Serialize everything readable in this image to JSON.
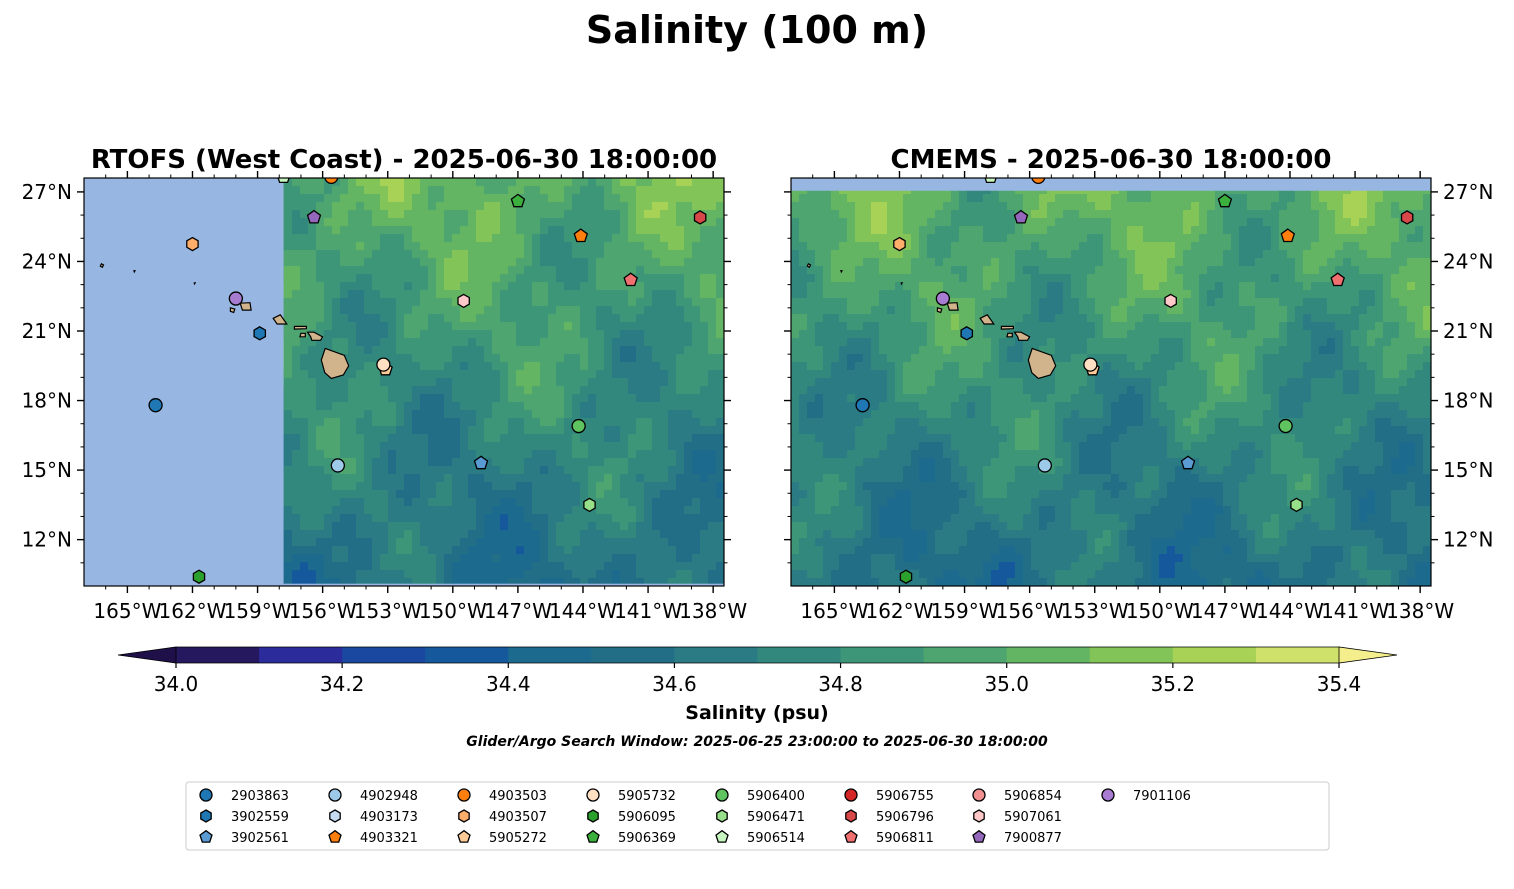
{
  "title": "Salinity (100 m)",
  "panels": [
    {
      "title": "RTOFS (West Coast) - 2025-06-30 18:00:00"
    },
    {
      "title": "CMEMS - 2025-06-30 18:00:00"
    }
  ],
  "map": {
    "lon_range": [
      -167,
      -137.5
    ],
    "lat_range": [
      10,
      27.6
    ],
    "x_ticks": [
      {
        "value": -165,
        "label": "165°W"
      },
      {
        "value": -162,
        "label": "162°W"
      },
      {
        "value": -159,
        "label": "159°W"
      },
      {
        "value": -156,
        "label": "156°W"
      },
      {
        "value": -153,
        "label": "153°W"
      },
      {
        "value": -150,
        "label": "150°W"
      },
      {
        "value": -147,
        "label": "147°W"
      },
      {
        "value": -144,
        "label": "144°W"
      },
      {
        "value": -141,
        "label": "141°W"
      },
      {
        "value": -138,
        "label": "138°W"
      }
    ],
    "y_ticks": [
      {
        "value": 27,
        "label": "27°N"
      },
      {
        "value": 24,
        "label": "24°N"
      },
      {
        "value": 21,
        "label": "21°N"
      },
      {
        "value": 18,
        "label": "18°N"
      },
      {
        "value": 15,
        "label": "15°N"
      },
      {
        "value": 12,
        "label": "12°N"
      }
    ],
    "land_color": "#d2b48c",
    "nodata_color": "#97b6e1"
  },
  "colorbar": {
    "label": "Salinity (psu)",
    "min": 34.0,
    "max": 35.4,
    "step": 0.1,
    "ticks": [
      {
        "value": 34.0,
        "label": "34.0"
      },
      {
        "value": 34.2,
        "label": "34.2"
      },
      {
        "value": 34.4,
        "label": "34.4"
      },
      {
        "value": 34.6,
        "label": "34.6"
      },
      {
        "value": 34.8,
        "label": "34.8"
      },
      {
        "value": 35.0,
        "label": "35.0"
      },
      {
        "value": 35.2,
        "label": "35.2"
      },
      {
        "value": 35.4,
        "label": "35.4"
      }
    ],
    "colors": [
      "#26185e",
      "#2c2b9c",
      "#1a48a0",
      "#16589c",
      "#1c6b8f",
      "#226e87",
      "#2a7b84",
      "#33887e",
      "#3e9678",
      "#4ea56f",
      "#63b564",
      "#82c458",
      "#a7d255",
      "#d0e16b"
    ],
    "under_color": "#1f104a",
    "over_color": "#f4ee8c"
  },
  "search_window": "Glider/Argo Search Window: 2025-06-25 23:00:00 to 2025-06-30 18:00:00",
  "legend": [
    {
      "id": "2903863",
      "marker": "circle",
      "color": "#1f77b4"
    },
    {
      "id": "3902559",
      "marker": "hexagon",
      "color": "#1f77b4"
    },
    {
      "id": "3902561",
      "marker": "pentagon",
      "color": "#5a9bd4"
    },
    {
      "id": "4902948",
      "marker": "circle",
      "color": "#9ecae9"
    },
    {
      "id": "4903173",
      "marker": "hexagon",
      "color": "#c6dbef"
    },
    {
      "id": "4903321",
      "marker": "pentagon",
      "color": "#ff7f0e"
    },
    {
      "id": "4903503",
      "marker": "circle",
      "color": "#ff7f0e"
    },
    {
      "id": "4903507",
      "marker": "hexagon",
      "color": "#fdae6b"
    },
    {
      "id": "5905272",
      "marker": "pentagon",
      "color": "#ffcc99"
    },
    {
      "id": "5905732",
      "marker": "circle",
      "color": "#ffe0c2"
    },
    {
      "id": "5906095",
      "marker": "hexagon",
      "color": "#2ca02c"
    },
    {
      "id": "5906369",
      "marker": "pentagon",
      "color": "#3cb03c"
    },
    {
      "id": "5906400",
      "marker": "circle",
      "color": "#5fc35f"
    },
    {
      "id": "5906471",
      "marker": "hexagon",
      "color": "#98df8a"
    },
    {
      "id": "5906514",
      "marker": "pentagon",
      "color": "#c7f5c0"
    },
    {
      "id": "5906755",
      "marker": "circle",
      "color": "#d62728"
    },
    {
      "id": "5906796",
      "marker": "hexagon",
      "color": "#d94848"
    },
    {
      "id": "5906811",
      "marker": "pentagon",
      "color": "#f07070"
    },
    {
      "id": "5906854",
      "marker": "circle",
      "color": "#f09090"
    },
    {
      "id": "5907061",
      "marker": "hexagon",
      "color": "#ffc9c9"
    },
    {
      "id": "7900877",
      "marker": "pentagon",
      "color": "#9467bd"
    },
    {
      "id": "7901106",
      "marker": "circle",
      "color": "#a87cd0"
    }
  ],
  "floats": [
    {
      "id": "2903863",
      "lon": -163.7,
      "lat": 17.8
    },
    {
      "id": "3902559",
      "lon": -158.9,
      "lat": 20.9
    },
    {
      "id": "4902948",
      "lon": -155.3,
      "lat": 15.2
    },
    {
      "id": "4903321",
      "lon": -144.1,
      "lat": 25.1
    },
    {
      "id": "4903503",
      "lon": -155.6,
      "lat": 27.65
    },
    {
      "id": "4903507",
      "lon": -162.0,
      "lat": 24.75
    },
    {
      "id": "5905272",
      "lon": -153.1,
      "lat": 19.35
    },
    {
      "id": "5905732",
      "lon": -153.2,
      "lat": 19.55
    },
    {
      "id": "5906095",
      "lon": -161.7,
      "lat": 10.4
    },
    {
      "id": "5906369",
      "lon": -147.0,
      "lat": 26.6
    },
    {
      "id": "5906400",
      "lon": -144.2,
      "lat": 16.9
    },
    {
      "id": "5906471",
      "lon": -143.7,
      "lat": 13.5
    },
    {
      "id": "5906514",
      "lon": -157.8,
      "lat": 27.65
    },
    {
      "id": "5906796",
      "lon": -138.6,
      "lat": 25.9
    },
    {
      "id": "5906811",
      "lon": -141.8,
      "lat": 23.2
    },
    {
      "id": "5907061",
      "lon": -149.5,
      "lat": 22.3
    },
    {
      "id": "3902561",
      "lon": -148.7,
      "lat": 15.3
    },
    {
      "id": "7900877",
      "lon": -156.4,
      "lat": 25.9
    },
    {
      "id": "7901106",
      "lon": -160.0,
      "lat": 22.4
    }
  ]
}
